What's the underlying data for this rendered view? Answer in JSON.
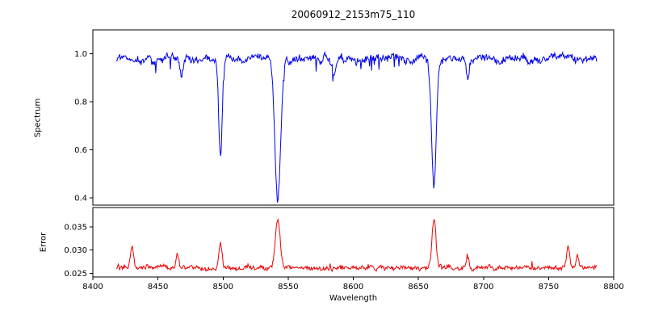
{
  "figure": {
    "title": "20060912_2153m75_110",
    "background": "#ffffff"
  },
  "chart_data": [
    {
      "type": "line",
      "name": "spectrum",
      "ylabel": "Spectrum",
      "color": "#0000ee",
      "xlim": [
        8400,
        8800
      ],
      "ylim": [
        0.37,
        1.1
      ],
      "ytick_labels": [
        "0.4",
        "0.6",
        "0.8",
        "1.0"
      ],
      "ytick_values": [
        0.4,
        0.6,
        0.8,
        1.0
      ],
      "x_data_range": [
        8418,
        8787
      ],
      "baseline": 0.982,
      "grid": false,
      "legend": "none",
      "noise": {
        "smooth_amp": 0.035,
        "white_amp": 0.013,
        "spike_prob": 0.03,
        "spike_amp": 0.07,
        "spike_sign": -1
      },
      "features": [
        {
          "center": 8498,
          "amp": 0.41,
          "sigma": 1.3,
          "sign": -1,
          "min_value": 0.57
        },
        {
          "center": 8542,
          "amp": 0.6,
          "sigma": 2.2,
          "sign": -1,
          "min_value": 0.39
        },
        {
          "center": 8662,
          "amp": 0.54,
          "sigma": 1.8,
          "sign": -1,
          "min_value": 0.44
        },
        {
          "center": 8468,
          "amp": 0.07,
          "sigma": 1.2,
          "sign": -1
        },
        {
          "center": 8585,
          "amp": 0.05,
          "sigma": 1.5,
          "sign": -1
        },
        {
          "center": 8688,
          "amp": 0.09,
          "sigma": 1.2,
          "sign": -1
        }
      ]
    },
    {
      "type": "line",
      "name": "error",
      "ylabel": "Error",
      "xlabel": "Wavelength",
      "color": "#ee0000",
      "xlim": [
        8400,
        8800
      ],
      "ylim": [
        0.0242,
        0.0392
      ],
      "ytick_labels": [
        "0.025",
        "0.030",
        "0.035"
      ],
      "ytick_values": [
        0.025,
        0.03,
        0.035
      ],
      "xtick_labels": [
        "8400",
        "8450",
        "8500",
        "8550",
        "8600",
        "8650",
        "8700",
        "8750",
        "8800"
      ],
      "xtick_values": [
        8400,
        8450,
        8500,
        8550,
        8600,
        8650,
        8700,
        8750,
        8800
      ],
      "x_data_range": [
        8418,
        8787
      ],
      "baseline": 0.0262,
      "grid": false,
      "legend": "none",
      "noise": {
        "smooth_amp": 0.0009,
        "white_amp": 0.0004,
        "spike_prob": 0.02,
        "spike_amp": 0.0015,
        "spike_sign": 1
      },
      "features": [
        {
          "center": 8430,
          "amp": 0.005,
          "sigma": 1.2,
          "sign": 1,
          "peak_value": 0.0315
        },
        {
          "center": 8465,
          "amp": 0.0028,
          "sigma": 1.0,
          "sign": 1,
          "peak_value": 0.0295
        },
        {
          "center": 8498,
          "amp": 0.0055,
          "sigma": 1.2,
          "sign": 1,
          "peak_value": 0.0325
        },
        {
          "center": 8542,
          "amp": 0.0105,
          "sigma": 1.8,
          "sign": 1,
          "peak_value": 0.0375
        },
        {
          "center": 8662,
          "amp": 0.0108,
          "sigma": 1.5,
          "sign": 1,
          "peak_value": 0.0375
        },
        {
          "center": 8688,
          "amp": 0.002,
          "sigma": 1.0,
          "sign": 1
        },
        {
          "center": 8765,
          "amp": 0.0045,
          "sigma": 1.2,
          "sign": 1,
          "peak_value": 0.0315
        },
        {
          "center": 8772,
          "amp": 0.0028,
          "sigma": 1.0,
          "sign": 1
        }
      ]
    }
  ]
}
